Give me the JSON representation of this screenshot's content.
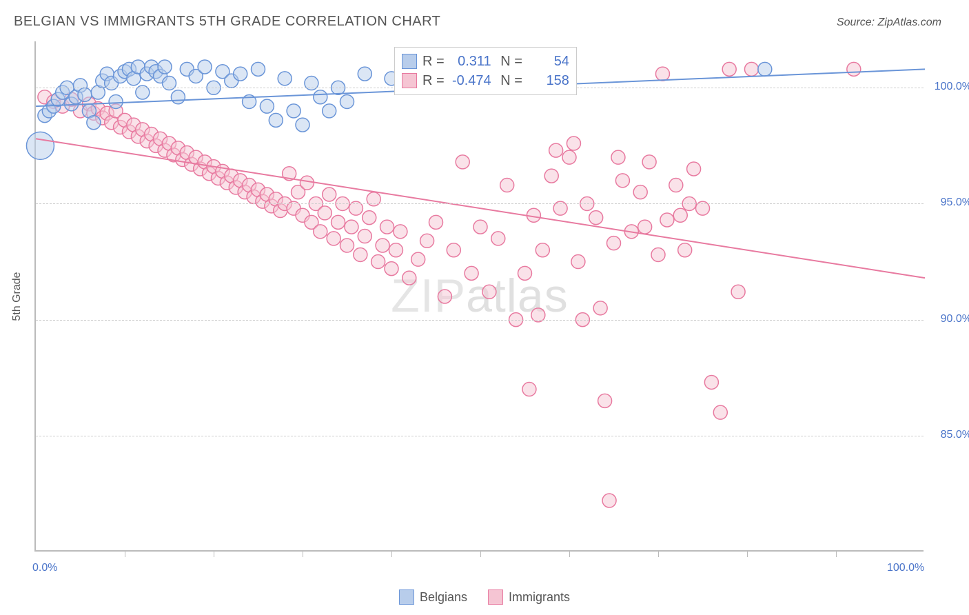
{
  "title": "BELGIAN VS IMMIGRANTS 5TH GRADE CORRELATION CHART",
  "source": "Source: ZipAtlas.com",
  "ylabel": "5th Grade",
  "watermark_a": "ZIP",
  "watermark_b": "atlas",
  "chart": {
    "type": "scatter",
    "xlim": [
      0,
      100
    ],
    "ylim": [
      80,
      102
    ],
    "x_axis_label_min": "0.0%",
    "x_axis_label_max": "100.0%",
    "y_ticks": [
      85.0,
      90.0,
      95.0,
      100.0
    ],
    "y_tick_labels": [
      "85.0%",
      "90.0%",
      "95.0%",
      "100.0%"
    ],
    "x_minor_ticks": [
      10,
      20,
      30,
      40,
      50,
      60,
      70,
      80,
      90
    ],
    "grid_color": "#d0d0d0",
    "axis_color": "#bbbbbb",
    "background_color": "#ffffff",
    "axis_label_color": "#4a74c9",
    "title_color": "#555555",
    "title_fontsize": 20,
    "label_fontsize": 16,
    "tick_fontsize": 16,
    "marker_radius": 10,
    "marker_radius_large": 20,
    "marker_stroke_width": 1.5,
    "line_width": 2
  },
  "series": {
    "belgians": {
      "label": "Belgians",
      "color_fill": "#b8cdeb",
      "color_stroke": "#6a95d8",
      "fill_opacity": 0.5,
      "R": "0.311",
      "N": "54",
      "trend": {
        "x1": 0,
        "y1": 99.2,
        "x2": 100,
        "y2": 100.8
      },
      "points": [
        [
          0.5,
          97.5,
          20
        ],
        [
          1,
          98.8,
          10
        ],
        [
          1.5,
          99.0,
          10
        ],
        [
          2,
          99.2,
          10
        ],
        [
          2.5,
          99.5,
          10
        ],
        [
          3,
          99.8,
          10
        ],
        [
          3.5,
          100.0,
          10
        ],
        [
          4,
          99.3,
          10
        ],
        [
          4.5,
          99.6,
          10
        ],
        [
          5,
          100.1,
          10
        ],
        [
          5.5,
          99.7,
          10
        ],
        [
          6,
          99.0,
          10
        ],
        [
          6.5,
          98.5,
          10
        ],
        [
          7,
          99.8,
          10
        ],
        [
          7.5,
          100.3,
          10
        ],
        [
          8,
          100.6,
          10
        ],
        [
          8.5,
          100.2,
          10
        ],
        [
          9,
          99.4,
          10
        ],
        [
          9.5,
          100.5,
          10
        ],
        [
          10,
          100.7,
          10
        ],
        [
          10.5,
          100.8,
          10
        ],
        [
          11,
          100.4,
          10
        ],
        [
          11.5,
          100.9,
          10
        ],
        [
          12,
          99.8,
          10
        ],
        [
          12.5,
          100.6,
          10
        ],
        [
          13,
          100.9,
          10
        ],
        [
          13.5,
          100.7,
          10
        ],
        [
          14,
          100.5,
          10
        ],
        [
          14.5,
          100.9,
          10
        ],
        [
          15,
          100.2,
          10
        ],
        [
          16,
          99.6,
          10
        ],
        [
          17,
          100.8,
          10
        ],
        [
          18,
          100.5,
          10
        ],
        [
          19,
          100.9,
          10
        ],
        [
          20,
          100.0,
          10
        ],
        [
          21,
          100.7,
          10
        ],
        [
          22,
          100.3,
          10
        ],
        [
          23,
          100.6,
          10
        ],
        [
          24,
          99.4,
          10
        ],
        [
          25,
          100.8,
          10
        ],
        [
          26,
          99.2,
          10
        ],
        [
          27,
          98.6,
          10
        ],
        [
          28,
          100.4,
          10
        ],
        [
          29,
          99.0,
          10
        ],
        [
          30,
          98.4,
          10
        ],
        [
          31,
          100.2,
          10
        ],
        [
          32,
          99.6,
          10
        ],
        [
          33,
          99.0,
          10
        ],
        [
          34,
          100.0,
          10
        ],
        [
          35,
          99.4,
          10
        ],
        [
          37,
          100.6,
          10
        ],
        [
          40,
          100.4,
          10
        ],
        [
          82,
          100.8,
          10
        ]
      ]
    },
    "immigrants": {
      "label": "Immigrants",
      "color_fill": "#f5c5d3",
      "color_stroke": "#e87aa0",
      "fill_opacity": 0.5,
      "R": "-0.474",
      "N": "158",
      "trend": {
        "x1": 0,
        "y1": 97.8,
        "x2": 100,
        "y2": 91.8
      },
      "points": [
        [
          1,
          99.6,
          10
        ],
        [
          2,
          99.4,
          10
        ],
        [
          3,
          99.2,
          10
        ],
        [
          4,
          99.5,
          10
        ],
        [
          5,
          99.0,
          10
        ],
        [
          6,
          99.3,
          10
        ],
        [
          6.5,
          98.9,
          10
        ],
        [
          7,
          99.1,
          10
        ],
        [
          7.5,
          98.7,
          10
        ],
        [
          8,
          98.9,
          10
        ],
        [
          8.5,
          98.5,
          10
        ],
        [
          9,
          99.0,
          10
        ],
        [
          9.5,
          98.3,
          10
        ],
        [
          10,
          98.6,
          10
        ],
        [
          10.5,
          98.1,
          10
        ],
        [
          11,
          98.4,
          10
        ],
        [
          11.5,
          97.9,
          10
        ],
        [
          12,
          98.2,
          10
        ],
        [
          12.5,
          97.7,
          10
        ],
        [
          13,
          98.0,
          10
        ],
        [
          13.5,
          97.5,
          10
        ],
        [
          14,
          97.8,
          10
        ],
        [
          14.5,
          97.3,
          10
        ],
        [
          15,
          97.6,
          10
        ],
        [
          15.5,
          97.1,
          10
        ],
        [
          16,
          97.4,
          10
        ],
        [
          16.5,
          96.9,
          10
        ],
        [
          17,
          97.2,
          10
        ],
        [
          17.5,
          96.7,
          10
        ],
        [
          18,
          97.0,
          10
        ],
        [
          18.5,
          96.5,
          10
        ],
        [
          19,
          96.8,
          10
        ],
        [
          19.5,
          96.3,
          10
        ],
        [
          20,
          96.6,
          10
        ],
        [
          20.5,
          96.1,
          10
        ],
        [
          21,
          96.4,
          10
        ],
        [
          21.5,
          95.9,
          10
        ],
        [
          22,
          96.2,
          10
        ],
        [
          22.5,
          95.7,
          10
        ],
        [
          23,
          96.0,
          10
        ],
        [
          23.5,
          95.5,
          10
        ],
        [
          24,
          95.8,
          10
        ],
        [
          24.5,
          95.3,
          10
        ],
        [
          25,
          95.6,
          10
        ],
        [
          25.5,
          95.1,
          10
        ],
        [
          26,
          95.4,
          10
        ],
        [
          26.5,
          94.9,
          10
        ],
        [
          27,
          95.2,
          10
        ],
        [
          27.5,
          94.7,
          10
        ],
        [
          28,
          95.0,
          10
        ],
        [
          28.5,
          96.3,
          10
        ],
        [
          29,
          94.8,
          10
        ],
        [
          29.5,
          95.5,
          10
        ],
        [
          30,
          94.5,
          10
        ],
        [
          30.5,
          95.9,
          10
        ],
        [
          31,
          94.2,
          10
        ],
        [
          31.5,
          95.0,
          10
        ],
        [
          32,
          93.8,
          10
        ],
        [
          32.5,
          94.6,
          10
        ],
        [
          33,
          95.4,
          10
        ],
        [
          33.5,
          93.5,
          10
        ],
        [
          34,
          94.2,
          10
        ],
        [
          34.5,
          95.0,
          10
        ],
        [
          35,
          93.2,
          10
        ],
        [
          35.5,
          94.0,
          10
        ],
        [
          36,
          94.8,
          10
        ],
        [
          36.5,
          92.8,
          10
        ],
        [
          37,
          93.6,
          10
        ],
        [
          37.5,
          94.4,
          10
        ],
        [
          38,
          95.2,
          10
        ],
        [
          38.5,
          92.5,
          10
        ],
        [
          39,
          93.2,
          10
        ],
        [
          39.5,
          94.0,
          10
        ],
        [
          40,
          92.2,
          10
        ],
        [
          40.5,
          93.0,
          10
        ],
        [
          41,
          93.8,
          10
        ],
        [
          42,
          91.8,
          10
        ],
        [
          43,
          92.6,
          10
        ],
        [
          44,
          93.4,
          10
        ],
        [
          45,
          94.2,
          10
        ],
        [
          46,
          91.0,
          10
        ],
        [
          47,
          93.0,
          10
        ],
        [
          48,
          96.8,
          10
        ],
        [
          49,
          92.0,
          10
        ],
        [
          50,
          94.0,
          10
        ],
        [
          51,
          91.2,
          10
        ],
        [
          52,
          93.5,
          10
        ],
        [
          53,
          95.8,
          10
        ],
        [
          54,
          90.0,
          10
        ],
        [
          55,
          92.0,
          10
        ],
        [
          55.5,
          87.0,
          10
        ],
        [
          56,
          94.5,
          10
        ],
        [
          56.5,
          90.2,
          10
        ],
        [
          57,
          93.0,
          10
        ],
        [
          58,
          96.2,
          10
        ],
        [
          58.5,
          97.3,
          10
        ],
        [
          59,
          94.8,
          10
        ],
        [
          60,
          97.0,
          10
        ],
        [
          60.5,
          97.6,
          10
        ],
        [
          61,
          92.5,
          10
        ],
        [
          61.5,
          90.0,
          10
        ],
        [
          62,
          95.0,
          10
        ],
        [
          63,
          94.4,
          10
        ],
        [
          63.5,
          90.5,
          10
        ],
        [
          64,
          86.5,
          10
        ],
        [
          64.5,
          82.2,
          10
        ],
        [
          65,
          93.3,
          10
        ],
        [
          65.5,
          97.0,
          10
        ],
        [
          66,
          96.0,
          10
        ],
        [
          67,
          93.8,
          10
        ],
        [
          68,
          95.5,
          10
        ],
        [
          68.5,
          94.0,
          10
        ],
        [
          69,
          96.8,
          10
        ],
        [
          70,
          92.8,
          10
        ],
        [
          70.5,
          100.6,
          10
        ],
        [
          71,
          94.3,
          10
        ],
        [
          72,
          95.8,
          10
        ],
        [
          72.5,
          94.5,
          10
        ],
        [
          73,
          93.0,
          10
        ],
        [
          73.5,
          95.0,
          10
        ],
        [
          74,
          96.5,
          10
        ],
        [
          75,
          94.8,
          10
        ],
        [
          76,
          87.3,
          10
        ],
        [
          77,
          86.0,
          10
        ],
        [
          78,
          100.8,
          10
        ],
        [
          79,
          91.2,
          10
        ],
        [
          80.5,
          100.8,
          10
        ],
        [
          92,
          100.8,
          10
        ]
      ]
    }
  },
  "legend_stats": {
    "R_label": "R =",
    "N_label": "N ="
  },
  "x_legend": {
    "items": [
      "belgians",
      "immigrants"
    ]
  }
}
